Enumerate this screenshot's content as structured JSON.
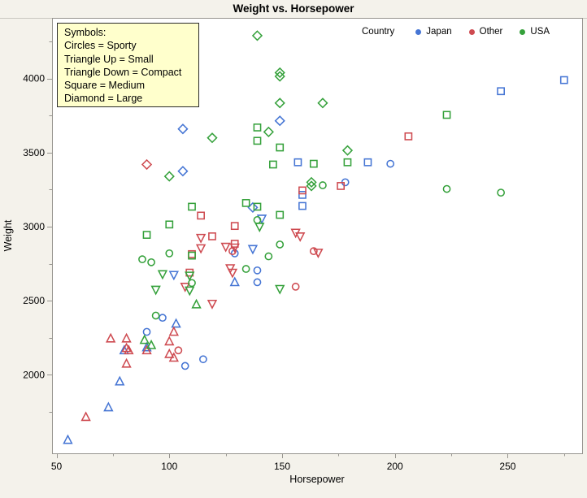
{
  "colors": {
    "outer_background": "#f4f2eb",
    "plot_background": "#ffffff",
    "frame": "#96948f",
    "divider": "#c9c7c1",
    "text": "#000000",
    "japan": "#4575d4",
    "other": "#ce4a50",
    "usa": "#35a13b",
    "symbols_box_bg": "#ffffcc"
  },
  "symbols_legend": {
    "lines": [
      "Symbols:",
      "Circles = Sporty",
      "Triangle Up = Small",
      "Triangle Down = Compact",
      "Square = Medium",
      "Diamond = Large"
    ]
  },
  "country_legend": {
    "label": "Country",
    "items": [
      {
        "label": "Japan",
        "color": "#4575d4"
      },
      {
        "label": "Other",
        "color": "#ce4a50"
      },
      {
        "label": "USA",
        "color": "#35a13b"
      }
    ]
  },
  "chart_data": {
    "type": "scatter",
    "title": "Weight vs. Horsepower",
    "xlabel": "Horsepower",
    "ylabel": "Weight",
    "xlim": [
      48,
      283
    ],
    "ylim": [
      1470,
      4410
    ],
    "x_ticks": [
      50,
      100,
      150,
      200,
      250
    ],
    "x_minor_ticks": [
      75,
      125,
      175,
      225,
      275
    ],
    "y_ticks": [
      2000,
      2500,
      3000,
      3500,
      4000
    ],
    "y_minor_ticks": [
      1750,
      2250,
      2750,
      3250,
      3750,
      4250
    ],
    "grid": false,
    "legend_position": "top-right",
    "shape_meaning": {
      "circle": "Sporty",
      "triangle-up": "Small",
      "triangle-down": "Compact",
      "square": "Medium",
      "diamond": "Large"
    },
    "series": [
      {
        "name": "Japan",
        "color": "#4575d4",
        "points": [
          [
            106,
            3660,
            "diamond"
          ],
          [
            106,
            3375,
            "diamond"
          ],
          [
            149,
            3715,
            "diamond"
          ],
          [
            137,
            3130,
            "diamond"
          ],
          [
            275,
            3990,
            "square"
          ],
          [
            247,
            3915,
            "square"
          ],
          [
            157,
            3435,
            "square"
          ],
          [
            188,
            3435,
            "square"
          ],
          [
            159,
            3215,
            "square"
          ],
          [
            159,
            3140,
            "square"
          ],
          [
            198,
            3425,
            "circle"
          ],
          [
            178,
            3300,
            "circle"
          ],
          [
            129,
            2820,
            "circle"
          ],
          [
            139,
            2705,
            "circle"
          ],
          [
            139,
            2625,
            "circle"
          ],
          [
            107,
            2060,
            "circle"
          ],
          [
            115,
            2105,
            "circle"
          ],
          [
            97,
            2385,
            "circle"
          ],
          [
            90,
            2290,
            "circle"
          ],
          [
            141,
            3055,
            "triangle-down"
          ],
          [
            137,
            2850,
            "triangle-down"
          ],
          [
            102,
            2675,
            "triangle-down"
          ],
          [
            55,
            1560,
            "triangle-up"
          ],
          [
            73,
            1780,
            "triangle-up"
          ],
          [
            78,
            1955,
            "triangle-up"
          ],
          [
            80,
            2165,
            "triangle-up"
          ],
          [
            90,
            2185,
            "triangle-up"
          ],
          [
            103,
            2345,
            "triangle-up"
          ],
          [
            129,
            2625,
            "triangle-up"
          ]
        ]
      },
      {
        "name": "Other",
        "color": "#ce4a50",
        "points": [
          [
            90,
            3420,
            "diamond"
          ],
          [
            206,
            3610,
            "square"
          ],
          [
            159,
            3245,
            "square"
          ],
          [
            176,
            3275,
            "square"
          ],
          [
            114,
            3075,
            "square"
          ],
          [
            119,
            2935,
            "square"
          ],
          [
            129,
            3005,
            "square"
          ],
          [
            129,
            2885,
            "square"
          ],
          [
            110,
            2815,
            "square"
          ],
          [
            109,
            2690,
            "square"
          ],
          [
            164,
            2835,
            "circle"
          ],
          [
            128,
            2835,
            "circle"
          ],
          [
            156,
            2595,
            "circle"
          ],
          [
            104,
            2165,
            "circle"
          ],
          [
            114,
            2925,
            "triangle-down"
          ],
          [
            114,
            2855,
            "triangle-down"
          ],
          [
            125,
            2865,
            "triangle-down"
          ],
          [
            156,
            2960,
            "triangle-down"
          ],
          [
            158,
            2935,
            "triangle-down"
          ],
          [
            166,
            2825,
            "triangle-down"
          ],
          [
            129,
            2860,
            "triangle-down"
          ],
          [
            127,
            2720,
            "triangle-down"
          ],
          [
            128,
            2690,
            "triangle-down"
          ],
          [
            107,
            2595,
            "triangle-down"
          ],
          [
            119,
            2480,
            "triangle-down"
          ],
          [
            63,
            1715,
            "triangle-up"
          ],
          [
            74,
            2245,
            "triangle-up"
          ],
          [
            81,
            2245,
            "triangle-up"
          ],
          [
            81,
            2180,
            "triangle-up"
          ],
          [
            82,
            2165,
            "triangle-up"
          ],
          [
            81,
            2075,
            "triangle-up"
          ],
          [
            90,
            2165,
            "triangle-up"
          ],
          [
            102,
            2290,
            "triangle-up"
          ],
          [
            100,
            2225,
            "triangle-up"
          ],
          [
            100,
            2140,
            "triangle-up"
          ],
          [
            102,
            2115,
            "triangle-up"
          ]
        ]
      },
      {
        "name": "USA",
        "color": "#35a13b",
        "points": [
          [
            139,
            4290,
            "diamond"
          ],
          [
            149,
            4040,
            "diamond"
          ],
          [
            149,
            4015,
            "diamond"
          ],
          [
            149,
            3835,
            "diamond"
          ],
          [
            168,
            3835,
            "diamond"
          ],
          [
            144,
            3640,
            "diamond"
          ],
          [
            119,
            3600,
            "diamond"
          ],
          [
            100,
            3340,
            "diamond"
          ],
          [
            163,
            3300,
            "diamond"
          ],
          [
            163,
            3275,
            "diamond"
          ],
          [
            179,
            3515,
            "diamond"
          ],
          [
            223,
            3755,
            "square"
          ],
          [
            139,
            3670,
            "square"
          ],
          [
            139,
            3580,
            "square"
          ],
          [
            149,
            3535,
            "square"
          ],
          [
            164,
            3425,
            "square"
          ],
          [
            146,
            3420,
            "square"
          ],
          [
            179,
            3435,
            "square"
          ],
          [
            134,
            3160,
            "square"
          ],
          [
            139,
            3135,
            "square"
          ],
          [
            149,
            3080,
            "square"
          ],
          [
            110,
            3135,
            "square"
          ],
          [
            100,
            3015,
            "square"
          ],
          [
            90,
            2945,
            "square"
          ],
          [
            110,
            2805,
            "square"
          ],
          [
            168,
            3280,
            "circle"
          ],
          [
            223,
            3255,
            "circle"
          ],
          [
            247,
            3230,
            "circle"
          ],
          [
            139,
            3045,
            "circle"
          ],
          [
            149,
            2880,
            "circle"
          ],
          [
            144,
            2800,
            "circle"
          ],
          [
            100,
            2820,
            "circle"
          ],
          [
            88,
            2780,
            "circle"
          ],
          [
            92,
            2760,
            "circle"
          ],
          [
            134,
            2715,
            "circle"
          ],
          [
            110,
            2620,
            "circle"
          ],
          [
            94,
            2400,
            "circle"
          ],
          [
            140,
            3000,
            "triangle-down"
          ],
          [
            97,
            2680,
            "triangle-down"
          ],
          [
            109,
            2570,
            "triangle-down"
          ],
          [
            94,
            2575,
            "triangle-down"
          ],
          [
            149,
            2580,
            "triangle-down"
          ],
          [
            109,
            2670,
            "triangle-down"
          ],
          [
            89,
            2235,
            "triangle-up"
          ],
          [
            92,
            2200,
            "triangle-up"
          ],
          [
            112,
            2475,
            "triangle-up"
          ]
        ]
      }
    ]
  }
}
